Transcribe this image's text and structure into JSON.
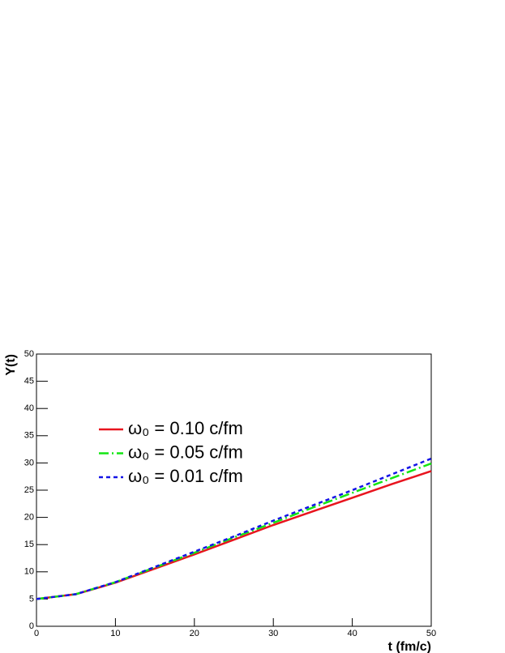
{
  "chart_data": {
    "type": "line",
    "x_label": "t (fm/c)",
    "y_label": "Y(t)",
    "x": [
      0,
      5,
      10,
      15,
      20,
      25,
      30,
      35,
      40,
      45,
      50
    ],
    "series": [
      {
        "name": "ω₀ = 0.10 c/fm",
        "color": "#e8141e",
        "style": "solid",
        "values": [
          5,
          5.9,
          8.0,
          10.6,
          13.2,
          15.9,
          18.6,
          21.1,
          23.6,
          26.1,
          28.5
        ]
      },
      {
        "name": "ω₀ = 0.05 c/fm",
        "color": "#14e614",
        "style": "dashdot",
        "values": [
          5,
          5.9,
          8.1,
          10.8,
          13.5,
          16.3,
          19.0,
          21.8,
          24.5,
          27.2,
          29.9
        ]
      },
      {
        "name": "ω₀ = 0.01 c/fm",
        "color": "#1414e6",
        "style": "dashed",
        "values": [
          5,
          5.9,
          8.1,
          10.9,
          13.7,
          16.5,
          19.4,
          22.2,
          25.0,
          27.9,
          30.8
        ]
      }
    ],
    "xlim": [
      0,
      50
    ],
    "xticks": [
      0,
      10,
      20,
      30,
      40,
      50
    ],
    "ylim": [
      0,
      50
    ],
    "yticks": [
      0,
      5,
      10,
      15,
      20,
      25,
      30,
      35,
      40,
      45,
      50
    ],
    "grid": false,
    "legend": "upper left"
  }
}
